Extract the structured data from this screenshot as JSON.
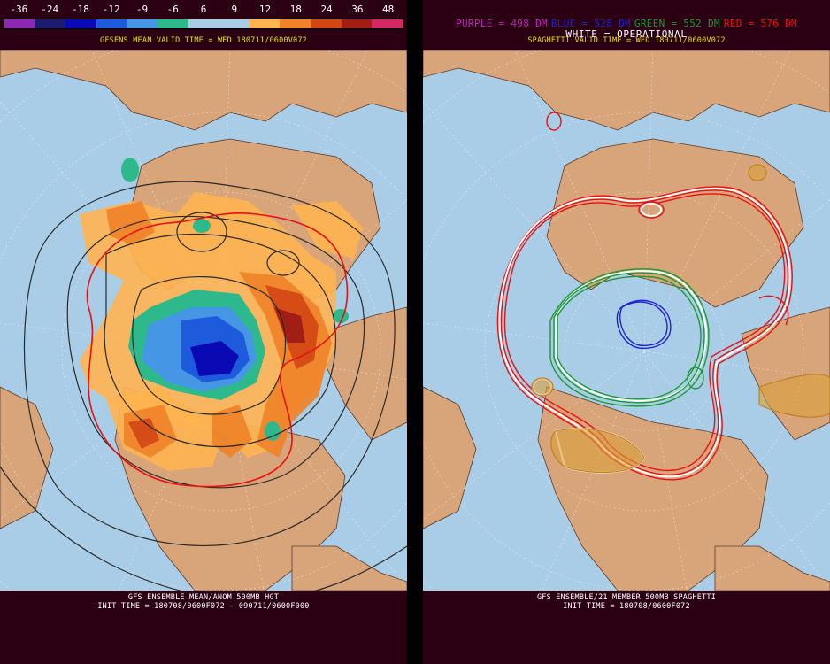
{
  "left": {
    "colorbar": {
      "labels": [
        "-36",
        "-24",
        "-18",
        "-12",
        "-9",
        "-6",
        "6",
        "9",
        "12",
        "18",
        "24",
        "36",
        "48"
      ],
      "colors": [
        "#8c28b4",
        "#1c1c6e",
        "#0a0ab4",
        "#1e5adc",
        "#4696e6",
        "#2db98c",
        "#a9cde6",
        "#a9cde6",
        "#ffb450",
        "#f08228",
        "#d24614",
        "#a01e14",
        "#d22864"
      ]
    },
    "title": "GFSENS MEAN VALID TIME = WED 180711/0600V072",
    "caption_line1": "GFS ENSEMBLE MEAN/ANOM 500MB HGT",
    "caption_line2": "INIT TIME = 180708/0600F072 - 090711/0600F000"
  },
  "right": {
    "legend": [
      {
        "text": "PURPLE = 498 DM",
        "color": "#c020c0"
      },
      {
        "text": "BLUE = 528 DM",
        "color": "#2020d0"
      },
      {
        "text": "GREEN = 552 DM",
        "color": "#1a9a30"
      },
      {
        "text": "RED = 576 DM",
        "color": "#e81010"
      }
    ],
    "operational_label": "WHITE = OPERATIONAL",
    "title": "SPAGHETTI VALID TIME = WED 180711/0600V072",
    "caption_line1": "GFS ENSEMBLE/21 MEMBER 500MB SPAGHETTI",
    "caption_line2": "INIT TIME = 180708/0600F072"
  },
  "colors": {
    "background": "#2b0012",
    "ocean": "#a9cde6",
    "land": "#d8a47a",
    "caption_yellow": "#e8e000"
  }
}
